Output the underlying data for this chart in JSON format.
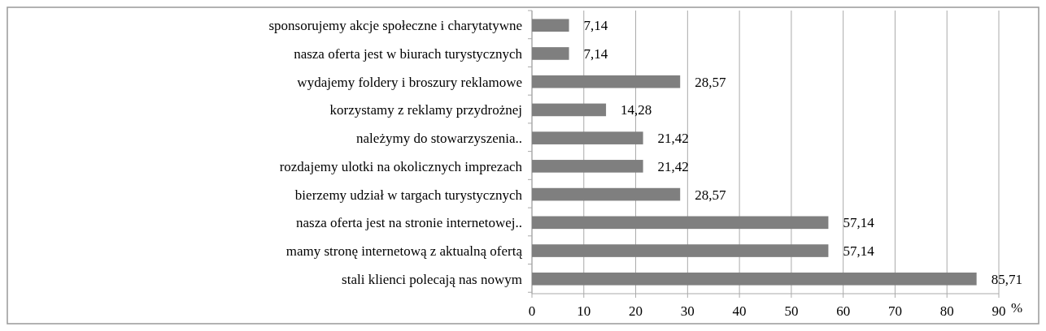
{
  "chart_data": {
    "type": "bar",
    "orientation": "horizontal",
    "xlabel": "%",
    "categories": [
      "sponsorujemy akcje społeczne i charytatywne",
      "nasza oferta jest w biurach turystycznych",
      "wydajemy foldery i broszury reklamowe",
      "korzystamy z reklamy przydrożnej",
      "należymy do stowarzyszenia..",
      "rozdajemy ulotki na okolicznych imprezach",
      "bierzemy udział w targach turystycznych",
      "nasza oferta jest na stronie internetowej..",
      "mamy stronę internetową z aktualną ofertą",
      "stali klienci polecają nas nowym"
    ],
    "values": [
      7.14,
      7.14,
      28.57,
      14.28,
      21.42,
      21.42,
      28.57,
      57.14,
      57.14,
      85.71
    ],
    "value_labels": [
      "7,14",
      "7,14",
      "28,57",
      "14,28",
      "21,42",
      "21,42",
      "28,57",
      "57,14",
      "57,14",
      "85,71"
    ],
    "color": "#7f7f7f",
    "xlim": [
      0,
      90
    ],
    "xticks": [
      0,
      10,
      20,
      30,
      40,
      50,
      60,
      70,
      80,
      90
    ],
    "grid": "x"
  }
}
